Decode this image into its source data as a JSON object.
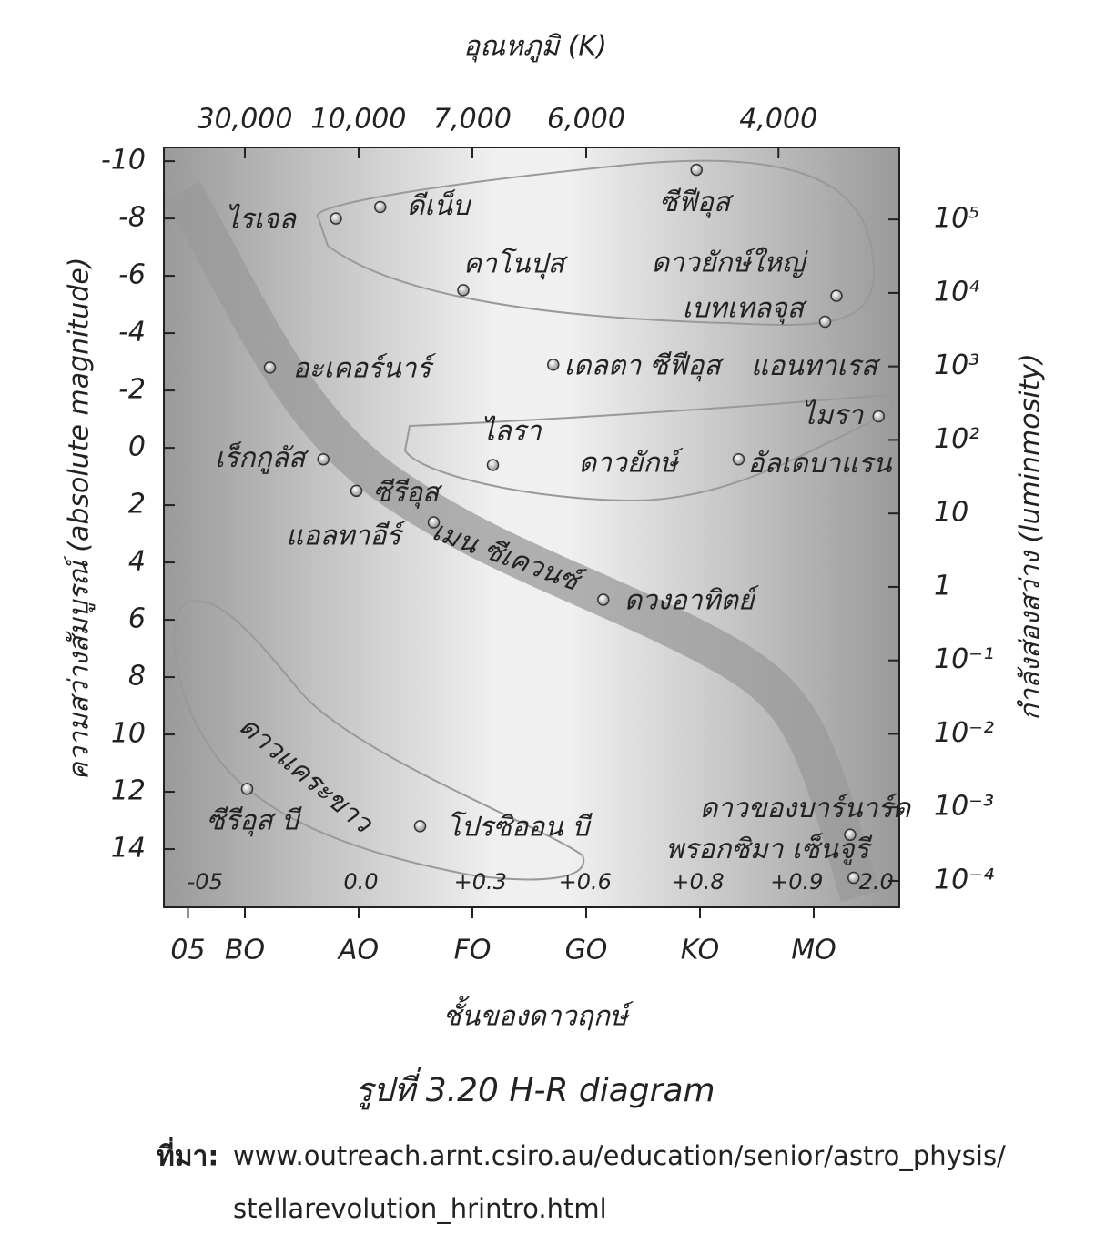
{
  "chart_data": {
    "type": "scatter",
    "title": "อุณหภูมิ (K)",
    "y_label": "ความสว่างสัมบูรณ์ (absolute magnitude)",
    "y2_label": "กำลังส่องสว่าง (luminmosity)",
    "x_label": "ชั้นของดาวฤกษ์",
    "caption": "รูปที่ 3.20 H-R diagram",
    "source_label": "ที่มา:",
    "source_lines": [
      "www.outreach.arnt.csiro.au/education/senior/astro_physis/",
      "stellarevolution_hrintro.html"
    ],
    "xlim": [
      -0.712,
      5.752
    ],
    "xticks": [
      {
        "value": -0.5,
        "label": "05"
      },
      {
        "value": 0,
        "label": "BO"
      },
      {
        "value": 1,
        "label": "AO"
      },
      {
        "value": 2,
        "label": "FO"
      },
      {
        "value": 3,
        "label": "GO"
      },
      {
        "value": 4,
        "label": "KO"
      },
      {
        "value": 5,
        "label": "MO"
      }
    ],
    "x2ticks": [
      {
        "value": 30000,
        "label": "30,000",
        "at": 0
      },
      {
        "value": 10000,
        "label": "10,000",
        "at": 1
      },
      {
        "value": 7000,
        "label": "7,000",
        "at": 2
      },
      {
        "value": 6000,
        "label": "6,000",
        "at": 3
      },
      {
        "value": 4000,
        "label": "4,000",
        "at": 4.69
      }
    ],
    "ylim": [
      -10.48,
      16.03
    ],
    "y_inverted": true,
    "yticks": [
      -10,
      -8,
      -6,
      -4,
      -2,
      0,
      2,
      4,
      6,
      8,
      10,
      12,
      14
    ],
    "y2lim": [
      4.37e-05,
      955000
    ],
    "y2_log": true,
    "y2ticks": [
      {
        "value": 100000,
        "label": "10⁵"
      },
      {
        "value": 10000,
        "label": "10⁴"
      },
      {
        "value": 1000,
        "label": "10³"
      },
      {
        "value": 100,
        "label": "10²"
      },
      10,
      1,
      {
        "value": 0.1,
        "label": "10⁻¹"
      },
      {
        "value": 0.01,
        "label": "10⁻²"
      },
      {
        "value": 0.001,
        "label": "10⁻³"
      },
      {
        "value": 0.0001,
        "label": "10⁻⁴"
      }
    ],
    "color_index": [
      {
        "label": "-05",
        "at": -0.35
      },
      {
        "label": "0.0",
        "at": 1.02
      },
      {
        "label": "+0.3",
        "at": 2.07
      },
      {
        "label": "+0.6",
        "at": 2.99
      },
      {
        "label": "+0.8",
        "at": 3.98
      },
      {
        "label": "+0.9",
        "at": 4.85
      },
      {
        "label": "2.0",
        "at": 5.55
      }
    ],
    "regions": [
      "ดาวยักษ์ใหญ่",
      "ดาวยักษ์",
      "เมน ซีเควนซ์",
      "ดาวแคระขาว"
    ],
    "labels": [
      "ไรเจล",
      "ดีเน็บ",
      "คาโนปุส",
      "ซีฟีอุส",
      "เบทเทลจุส",
      "แอนทาเรส",
      "อะเคอร์นาร์",
      "เดลตา ซีฟีอุส",
      "ไมรา",
      "ไลรา",
      "อัลเดบาแรน",
      "เร็กกูลัส",
      "ซีรีอุส",
      "แอลทาอีร์",
      "ดวงอาทิตย์",
      "ซีรีอุส บี",
      "โปรซิออน บี",
      "ดาวของบาร์นาร์ด",
      "พรอกซิมา เซ็นจูรี"
    ],
    "x": [
      0.8,
      1.19,
      1.92,
      3.97,
      5.2,
      5.1,
      0.22,
      2.71,
      5.57,
      2.18,
      4.34,
      0.69,
      0.98,
      1.66,
      3.15,
      0.02,
      1.54,
      5.32,
      5.35
    ],
    "values": [
      -8.0,
      -8.4,
      -5.5,
      -9.7,
      -5.3,
      -4.4,
      -2.8,
      -2.9,
      -1.1,
      0.6,
      0.4,
      0.4,
      1.5,
      2.6,
      5.3,
      11.9,
      13.2,
      13.5,
      15.0
    ]
  }
}
